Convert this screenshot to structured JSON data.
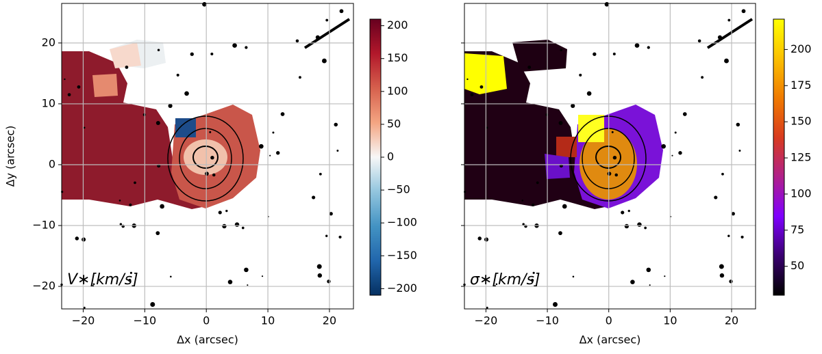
{
  "chart_data": [
    {
      "type": "image",
      "xlabel": "Δx (arcsec)",
      "ylabel": "Δy (arcsec)",
      "annotation": "V∗[km/s]",
      "xlim": [
        -23.5,
        23.9
      ],
      "ylim": [
        -23.7,
        26.5
      ],
      "xticks": [
        {
          "value": -20,
          "label": "−20"
        },
        {
          "value": -10,
          "label": "−10"
        },
        0,
        10,
        20
      ],
      "yticks": [
        {
          "value": -20,
          "label": "−20"
        },
        {
          "value": -10,
          "label": "−10"
        },
        0,
        10,
        20
      ],
      "grid": true,
      "show_ytick_labels": true,
      "colorbar": {
        "lim": [
          -210,
          210
        ],
        "ticks": [
          {
            "value": -200,
            "label": "−200"
          },
          {
            "value": -150,
            "label": "−150"
          },
          {
            "value": -100,
            "label": "−100"
          },
          {
            "value": -50,
            "label": "−50"
          },
          0,
          50,
          100,
          150,
          200
        ],
        "colors": [
          "#053061",
          "#2166ac",
          "#4393c3",
          "#92c5de",
          "#f7f7f7",
          "#f4a582",
          "#d6604d",
          "#b2182b",
          "#67001f"
        ]
      }
    },
    {
      "type": "image",
      "xlabel": "Δx (arcsec)",
      "annotation": "σ∗[km/s]",
      "xlim": [
        -23.5,
        23.9
      ],
      "ylim": [
        -23.7,
        26.5
      ],
      "xticks": [
        {
          "value": -20,
          "label": "−20"
        },
        {
          "value": -10,
          "label": "−10"
        },
        0,
        10,
        20
      ],
      "yticks": [
        -20,
        -10,
        0,
        10,
        20
      ],
      "grid": true,
      "show_ytick_labels": false,
      "colorbar": {
        "lim": [
          30,
          221
        ],
        "ticks": [
          50,
          75,
          100,
          125,
          150,
          175,
          200
        ],
        "colors": [
          "#000000",
          "#3a0070",
          "#7f00ff",
          "#b0208a",
          "#d83b1f",
          "#f07a00",
          "#fbc000",
          "#ffff00"
        ]
      }
    }
  ]
}
